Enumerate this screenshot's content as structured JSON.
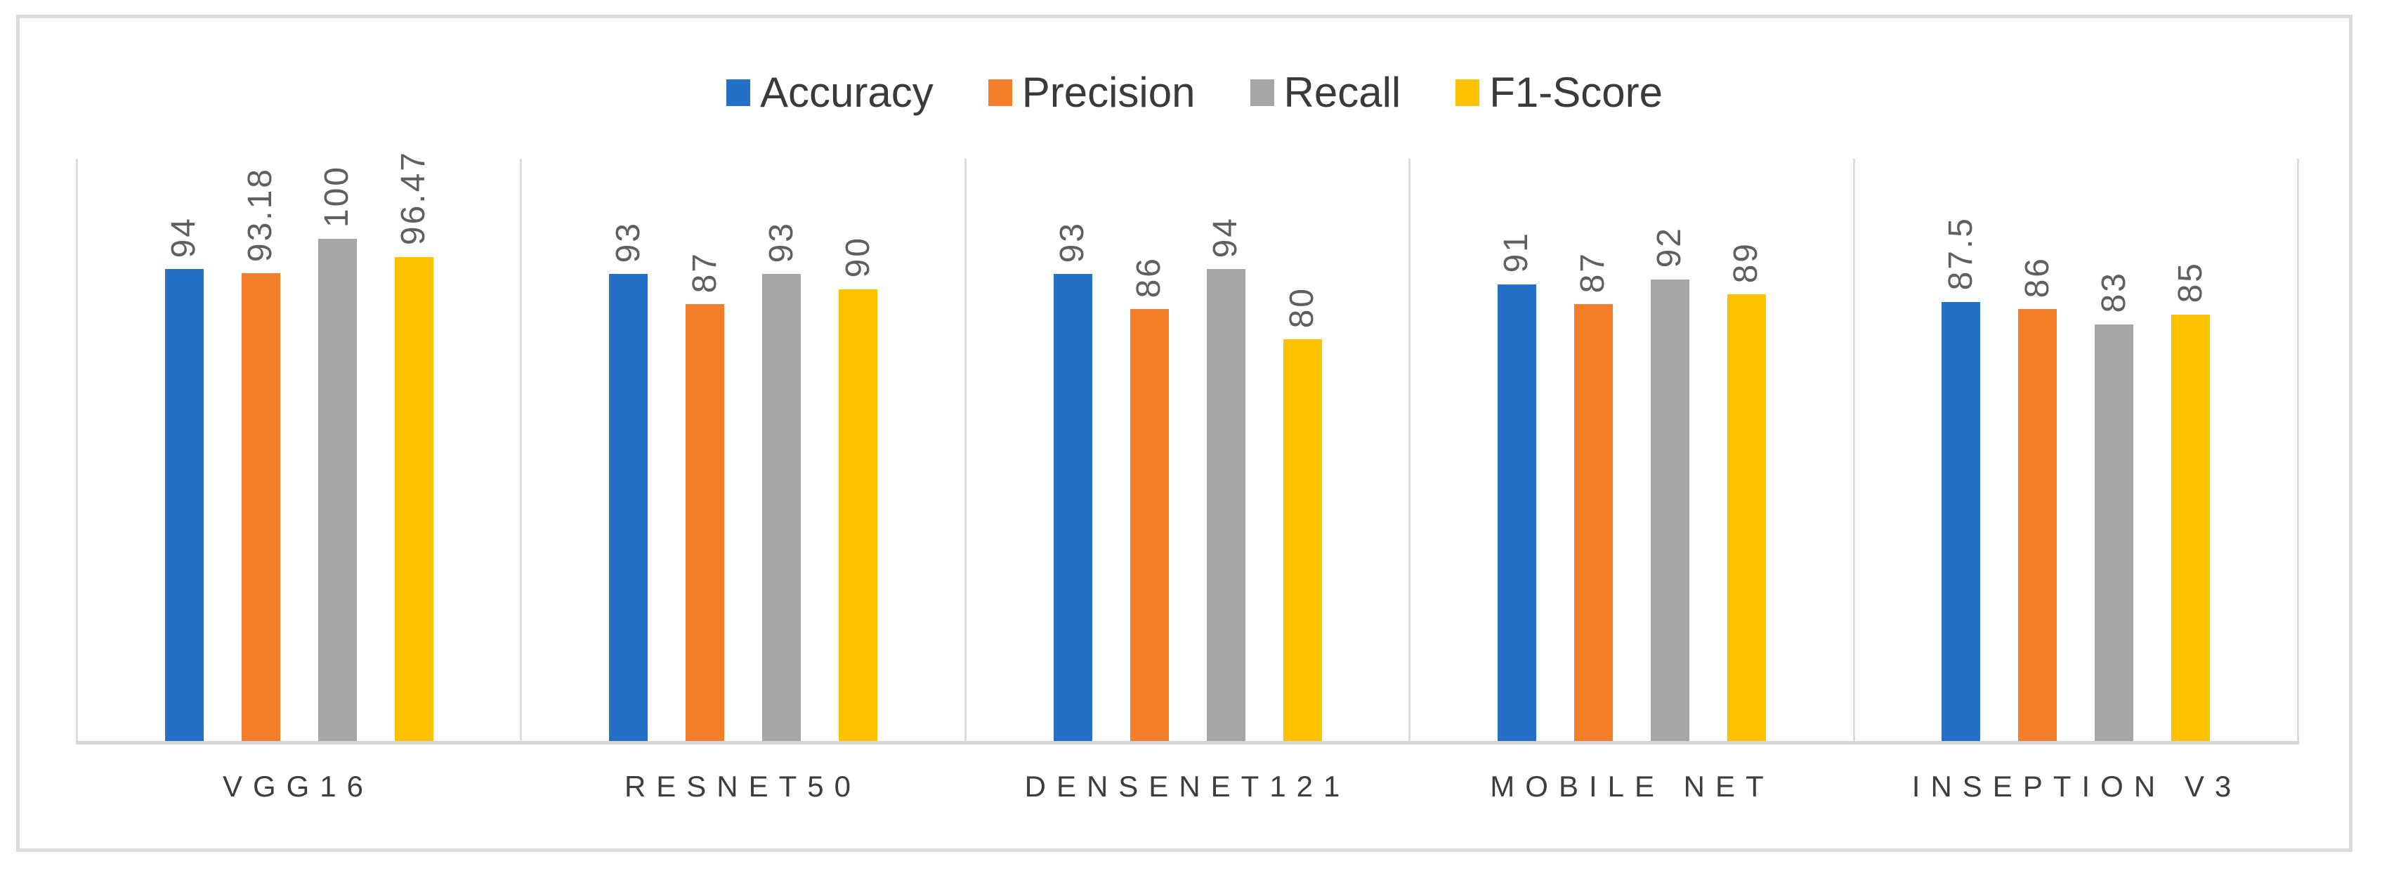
{
  "chart_data": {
    "type": "bar",
    "title": "",
    "xlabel": "",
    "ylabel": "",
    "categories": [
      "VGG16",
      "RESNET50",
      "DENSENET121",
      "MOBILE NET",
      "INSEPTION V3"
    ],
    "series": [
      {
        "name": "Accuracy",
        "color": "#2470c6",
        "values": [
          94,
          93,
          93,
          91,
          87.5
        ]
      },
      {
        "name": "Precision",
        "color": "#f57e2b",
        "values": [
          93.18,
          87,
          86,
          87,
          86
        ]
      },
      {
        "name": "Recall",
        "color": "#a6a6a6",
        "values": [
          100,
          93,
          94,
          92,
          83
        ]
      },
      {
        "name": "F1-Score",
        "color": "#ffc000",
        "values": [
          96.47,
          90,
          80,
          89,
          85
        ]
      }
    ],
    "value_labels_shown": true,
    "value_label_rotation_deg": 90,
    "value_label_color": "#5f5f5f",
    "category_label_color": "#3d3d3d",
    "legend_position": "top-center",
    "y_axis_visible": false,
    "ylim": [
      0,
      116
    ],
    "grid": "vertical category separator lines",
    "gridline_color": "#dcdcdc",
    "axis_line_color": "#d4d4d4",
    "frame_border_color": "#dbdbdb"
  }
}
